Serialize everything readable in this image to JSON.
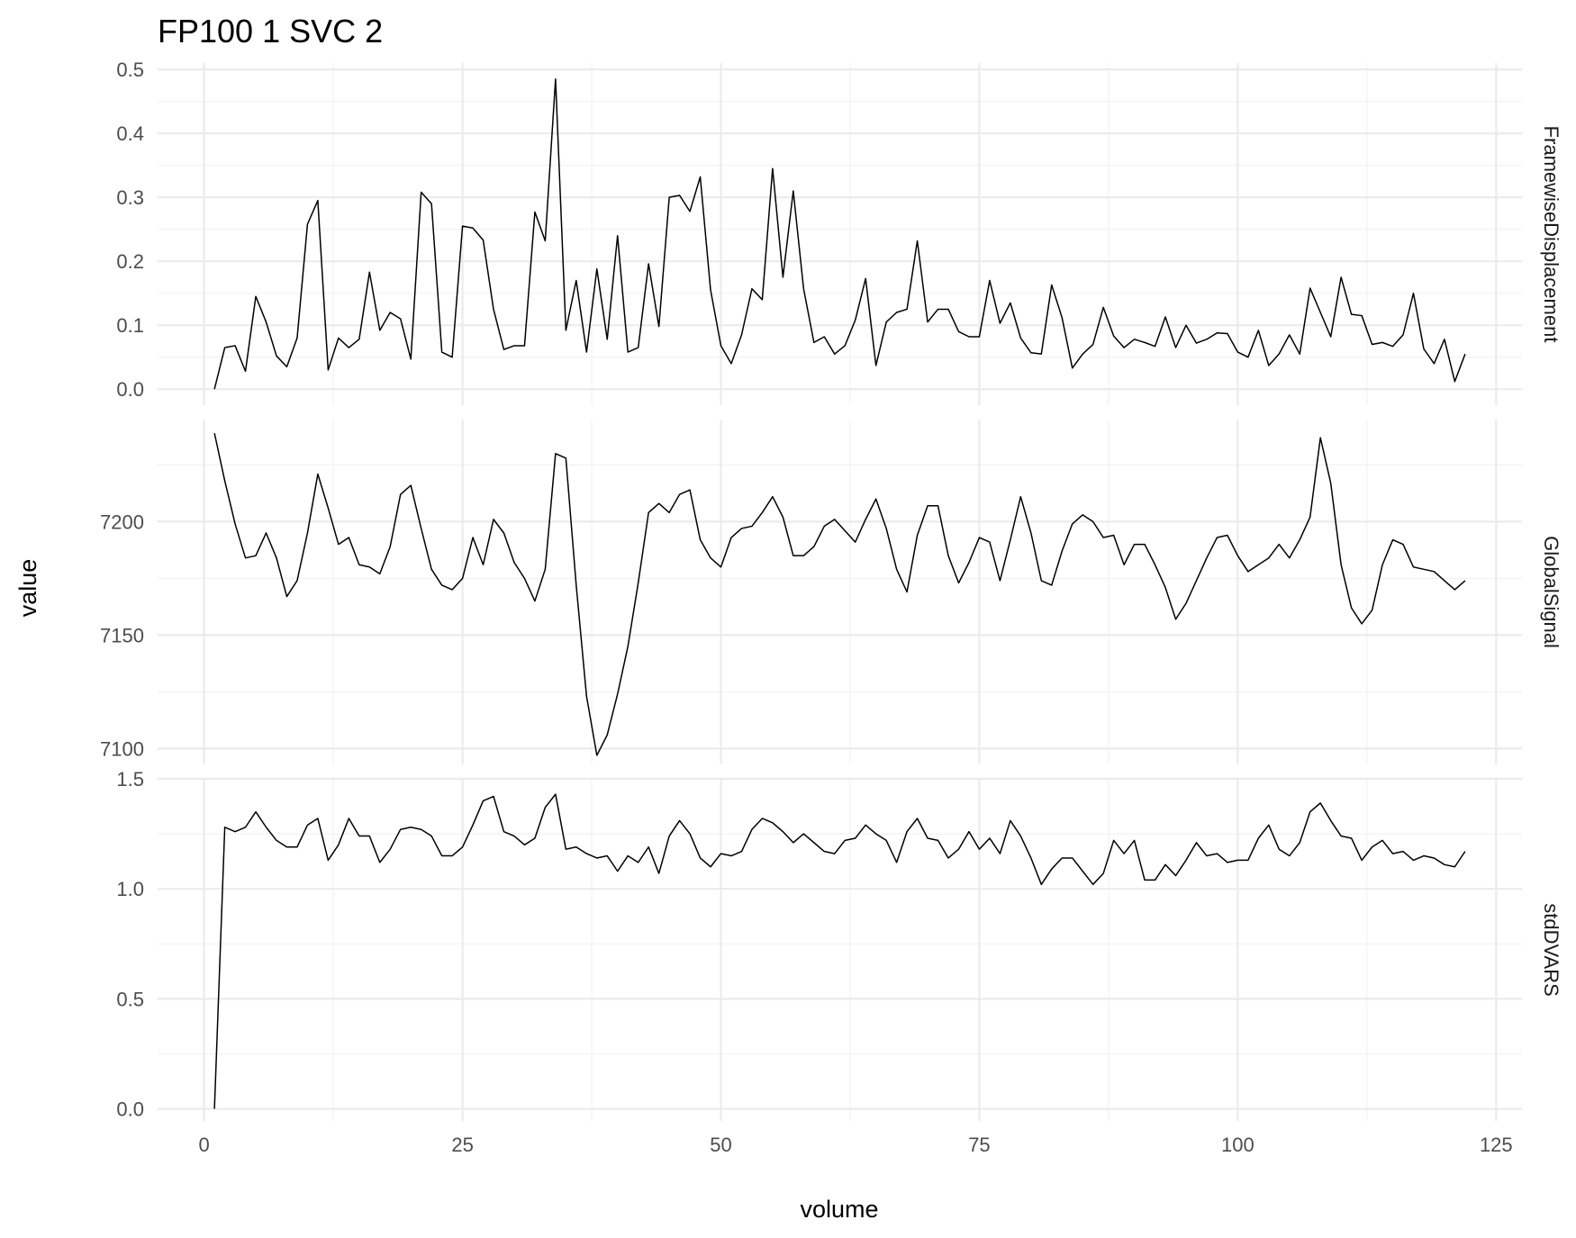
{
  "chart_data": {
    "type": "line",
    "title": "FP100  1  SVC  2",
    "xlabel": "volume",
    "ylabel": "value",
    "xlim": [
      -4.5,
      127.5
    ],
    "x_ticks": [
      0,
      25,
      50,
      75,
      100,
      125
    ],
    "grid": true,
    "legend": "none",
    "line_color": "#000000",
    "panels": [
      {
        "name": "FramewiseDisplacement",
        "ylim": [
          -0.025,
          0.51
        ],
        "y_ticks": [
          0.0,
          0.1,
          0.2,
          0.3,
          0.4,
          0.5
        ],
        "y_tick_labels": [
          "0.0",
          "0.1",
          "0.2",
          "0.3",
          "0.4",
          "0.5"
        ],
        "x_start": 1,
        "values": [
          0.0,
          0.065,
          0.068,
          0.028,
          0.145,
          0.105,
          0.052,
          0.035,
          0.08,
          0.258,
          0.295,
          0.03,
          0.08,
          0.065,
          0.078,
          0.183,
          0.092,
          0.12,
          0.11,
          0.047,
          0.308,
          0.29,
          0.058,
          0.05,
          0.255,
          0.252,
          0.233,
          0.125,
          0.062,
          0.068,
          0.068,
          0.277,
          0.232,
          0.485,
          0.092,
          0.17,
          0.058,
          0.188,
          0.078,
          0.24,
          0.058,
          0.065,
          0.196,
          0.098,
          0.3,
          0.303,
          0.278,
          0.332,
          0.155,
          0.068,
          0.04,
          0.085,
          0.157,
          0.14,
          0.345,
          0.175,
          0.31,
          0.157,
          0.073,
          0.082,
          0.055,
          0.068,
          0.108,
          0.173,
          0.037,
          0.105,
          0.12,
          0.125,
          0.232,
          0.105,
          0.125,
          0.125,
          0.09,
          0.082,
          0.082,
          0.17,
          0.103,
          0.135,
          0.08,
          0.057,
          0.055,
          0.163,
          0.112,
          0.033,
          0.055,
          0.07,
          0.128,
          0.083,
          0.065,
          0.078,
          0.073,
          0.067,
          0.113,
          0.065,
          0.1,
          0.072,
          0.078,
          0.088,
          0.087,
          0.058,
          0.05,
          0.092,
          0.037,
          0.055,
          0.085,
          0.055,
          0.158,
          0.12,
          0.082,
          0.175,
          0.117,
          0.115,
          0.07,
          0.073,
          0.067,
          0.085,
          0.15,
          0.063,
          0.04,
          0.078,
          0.012,
          0.055
        ]
      },
      {
        "name": "GlobalSignal",
        "ylim": [
          7093,
          7245
        ],
        "y_ticks": [
          7100,
          7150,
          7200
        ],
        "y_tick_labels": [
          "7100",
          "7150",
          "7200"
        ],
        "x_start": 1,
        "values": [
          7239,
          7218,
          7199,
          7184,
          7185,
          7195,
          7184,
          7167,
          7174,
          7195,
          7221,
          7206,
          7190,
          7193,
          7181,
          7180,
          7177,
          7189,
          7212,
          7216,
          7197,
          7179,
          7172,
          7170,
          7175,
          7193,
          7181,
          7201,
          7195,
          7182,
          7175,
          7165,
          7179,
          7230,
          7228,
          7172,
          7123,
          7097,
          7106,
          7124,
          7145,
          7173,
          7204,
          7208,
          7204,
          7212,
          7214,
          7192,
          7184,
          7180,
          7193,
          7197,
          7198,
          7204,
          7211,
          7202,
          7185,
          7185,
          7189,
          7198,
          7201,
          7196,
          7191,
          7201,
          7210,
          7197,
          7179,
          7169,
          7194,
          7207,
          7207,
          7185,
          7173,
          7182,
          7193,
          7191,
          7174,
          7192,
          7211,
          7195,
          7174,
          7172,
          7187,
          7199,
          7203,
          7200,
          7193,
          7194,
          7181,
          7190,
          7190,
          7181,
          7171,
          7157,
          7164,
          7174,
          7184,
          7193,
          7194,
          7185,
          7178,
          7181,
          7184,
          7190,
          7184,
          7192,
          7202,
          7237,
          7217,
          7181,
          7162,
          7155,
          7161,
          7181,
          7192,
          7190,
          7180,
          7179,
          7178,
          7174,
          7170,
          7174
        ]
      },
      {
        "name": "stdDVARS",
        "ylim": [
          -0.055,
          1.5
        ],
        "y_ticks": [
          0.0,
          0.5,
          1.0,
          1.5
        ],
        "y_tick_labels": [
          "0.0",
          "0.5",
          "1.0",
          "1.5"
        ],
        "x_start": 1,
        "values": [
          0.0,
          1.28,
          1.26,
          1.28,
          1.35,
          1.28,
          1.22,
          1.19,
          1.19,
          1.29,
          1.32,
          1.13,
          1.2,
          1.32,
          1.24,
          1.24,
          1.12,
          1.18,
          1.27,
          1.28,
          1.27,
          1.24,
          1.15,
          1.15,
          1.19,
          1.29,
          1.4,
          1.42,
          1.26,
          1.24,
          1.2,
          1.23,
          1.37,
          1.43,
          1.18,
          1.19,
          1.16,
          1.14,
          1.15,
          1.08,
          1.15,
          1.12,
          1.19,
          1.07,
          1.24,
          1.31,
          1.25,
          1.14,
          1.1,
          1.16,
          1.15,
          1.17,
          1.27,
          1.32,
          1.3,
          1.26,
          1.21,
          1.25,
          1.21,
          1.17,
          1.16,
          1.22,
          1.23,
          1.29,
          1.25,
          1.22,
          1.12,
          1.26,
          1.32,
          1.23,
          1.22,
          1.14,
          1.18,
          1.26,
          1.18,
          1.23,
          1.16,
          1.31,
          1.24,
          1.14,
          1.02,
          1.09,
          1.14,
          1.14,
          1.08,
          1.02,
          1.07,
          1.22,
          1.16,
          1.22,
          1.04,
          1.04,
          1.11,
          1.06,
          1.13,
          1.21,
          1.15,
          1.16,
          1.12,
          1.13,
          1.13,
          1.23,
          1.29,
          1.18,
          1.15,
          1.21,
          1.35,
          1.39,
          1.31,
          1.24,
          1.23,
          1.13,
          1.19,
          1.22,
          1.16,
          1.17,
          1.13,
          1.15,
          1.14,
          1.11,
          1.1,
          1.17
        ]
      }
    ]
  }
}
